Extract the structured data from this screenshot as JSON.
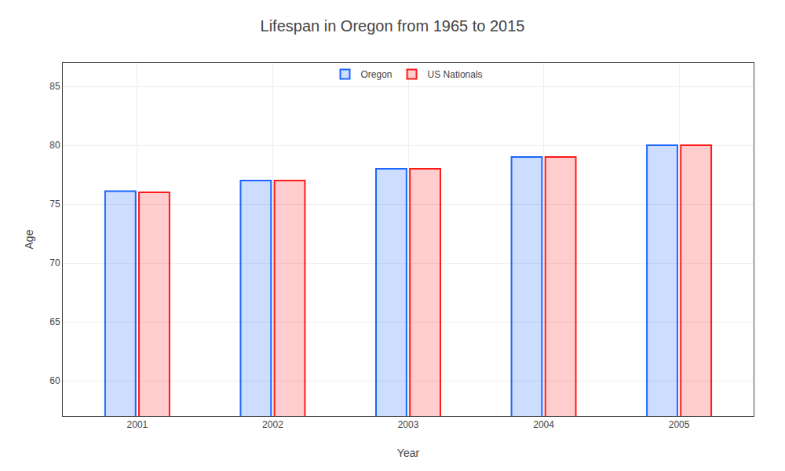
{
  "chart_data": {
    "type": "bar",
    "title": "Lifespan in Oregon from 1965 to 2015",
    "xlabel": "Year",
    "ylabel": "Age",
    "categories": [
      "2001",
      "2002",
      "2003",
      "2004",
      "2005"
    ],
    "series": [
      {
        "name": "Oregon",
        "color": "#1a66ff",
        "values": [
          76.1,
          77.0,
          78.0,
          79.0,
          80.0
        ]
      },
      {
        "name": "US Nationals",
        "color": "#ff1a1a",
        "values": [
          76.0,
          77.0,
          78.0,
          79.0,
          80.0
        ]
      }
    ],
    "ylim": [
      57,
      87
    ],
    "yticks": [
      60,
      65,
      70,
      75,
      80,
      85
    ],
    "grid": true,
    "legend": "top"
  }
}
